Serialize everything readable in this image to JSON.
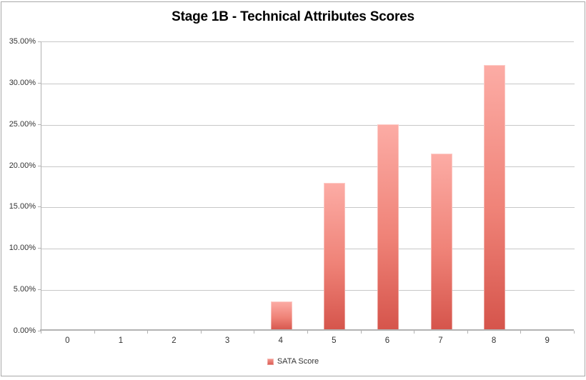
{
  "title": "Stage 1B - Technical Attributes Scores",
  "legend": {
    "label": "SATA Score"
  },
  "colors": {
    "bar_top": "#fcaca5",
    "bar_bottom": "#d5544b",
    "gridline": "#c7c7c7",
    "axis": "#b2b2b2",
    "frame_border": "#a8a8a8",
    "label_text": "#333333",
    "title_text": "#000000"
  },
  "chart_data": {
    "type": "bar",
    "title": "Stage 1B - Technical Attributes Scores",
    "categories": [
      "0",
      "1",
      "2",
      "3",
      "4",
      "5",
      "6",
      "7",
      "8",
      "9"
    ],
    "series": [
      {
        "name": "SATA Score",
        "values": [
          0,
          0,
          0,
          0,
          3.57,
          17.86,
          25.0,
          21.43,
          32.14,
          0
        ]
      }
    ],
    "xlabel": "",
    "ylabel": "",
    "ylim": [
      0,
      35
    ],
    "ytick_step": 5,
    "ytick_labels": [
      "0.00%",
      "5.00%",
      "10.00%",
      "15.00%",
      "20.00%",
      "25.00%",
      "30.00%",
      "35.00%"
    ],
    "value_unit": "percent",
    "grid": true,
    "legend_position": "bottom"
  }
}
